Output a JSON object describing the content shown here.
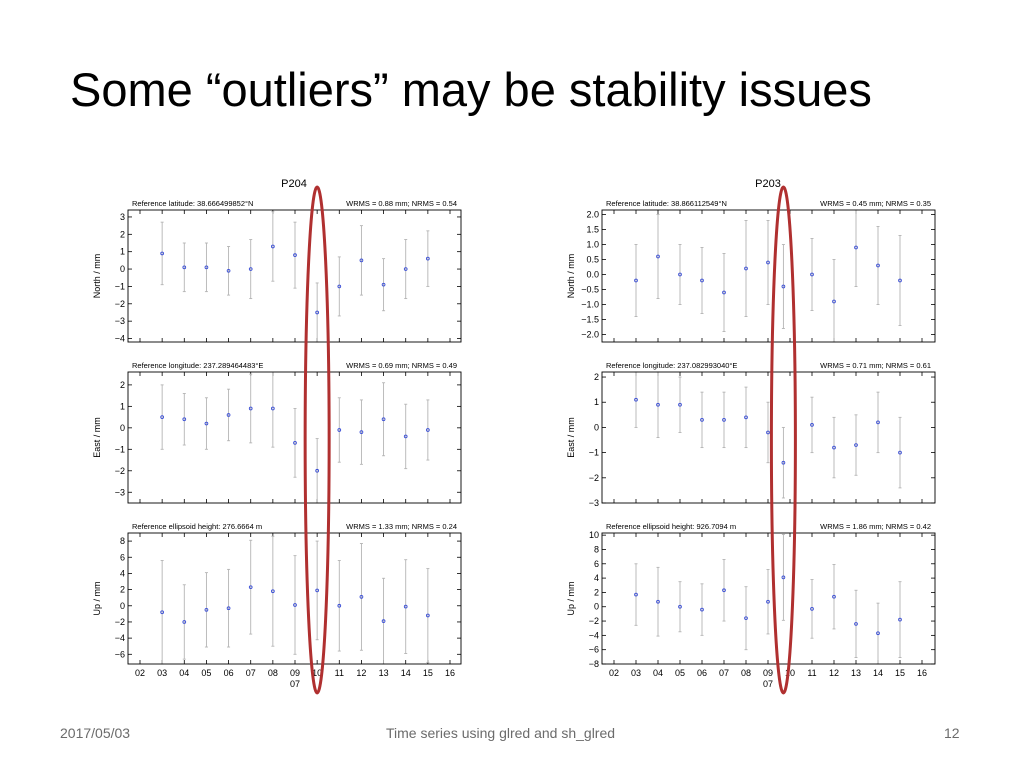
{
  "slide": {
    "title": "Some “outliers” may be stability issues",
    "footer_date": "2017/05/03",
    "footer_center": "Time series using glred and sh_glred",
    "page_number": "12"
  },
  "colors": {
    "point": "#3a4ed6",
    "errorbar": "#b4b4b4",
    "highlight_ellipse": "#b03030",
    "frame": "#000000"
  },
  "chart_data": [
    {
      "type": "scatter",
      "station": "P204",
      "x_ticks": [
        "02",
        "03",
        "04",
        "05",
        "06",
        "07",
        "08",
        "09",
        "10",
        "11",
        "12",
        "13",
        "14",
        "15",
        "16"
      ],
      "x_sublabel": {
        "tick": "09",
        "text": "07"
      },
      "highlight_x": 10.0,
      "panels": [
        {
          "component": "north",
          "ref_label": "Reference latitude: 38.666499852°N",
          "stats_label": "WRMS = 0.88 mm; NRMS = 0.54",
          "ylabel": "North / mm",
          "ylim": [
            -4.2,
            3.4
          ],
          "y_ticks": [
            {
              "v": 3,
              "t": "3"
            },
            {
              "v": 2,
              "t": "2"
            },
            {
              "v": 1,
              "t": "1"
            },
            {
              "v": 0,
              "t": "0"
            },
            {
              "v": -1,
              "t": "−1"
            },
            {
              "v": -2,
              "t": "−2"
            },
            {
              "v": -3,
              "t": "−3"
            },
            {
              "v": -4,
              "t": "−4"
            }
          ],
          "points": [
            {
              "x": 3,
              "y": 0.9,
              "lo": -0.9,
              "hi": 2.7
            },
            {
              "x": 4,
              "y": 0.1,
              "lo": -1.3,
              "hi": 1.5
            },
            {
              "x": 5,
              "y": 0.1,
              "lo": -1.3,
              "hi": 1.5
            },
            {
              "x": 6,
              "y": -0.1,
              "lo": -1.5,
              "hi": 1.3
            },
            {
              "x": 7,
              "y": 0.0,
              "lo": -1.7,
              "hi": 1.7
            },
            {
              "x": 8,
              "y": 1.3,
              "lo": -0.7,
              "hi": 3.3
            },
            {
              "x": 9,
              "y": 0.8,
              "lo": -1.1,
              "hi": 2.7
            },
            {
              "x": 10,
              "y": -2.5,
              "lo": -4.2,
              "hi": -0.8
            },
            {
              "x": 11,
              "y": -1.0,
              "lo": -2.7,
              "hi": 0.7
            },
            {
              "x": 12,
              "y": 0.5,
              "lo": -1.5,
              "hi": 2.5
            },
            {
              "x": 13,
              "y": -0.9,
              "lo": -2.4,
              "hi": 0.6
            },
            {
              "x": 14,
              "y": 0.0,
              "lo": -1.7,
              "hi": 1.7
            },
            {
              "x": 15,
              "y": 0.6,
              "lo": -1.0,
              "hi": 2.2
            }
          ]
        },
        {
          "component": "east",
          "ref_label": "Reference longitude: 237.289464483°E",
          "stats_label": "WRMS = 0.69 mm; NRMS = 0.49",
          "ylabel": "East / mm",
          "ylim": [
            -3.5,
            2.6
          ],
          "y_ticks": [
            {
              "v": 2,
              "t": "2"
            },
            {
              "v": 1,
              "t": "1"
            },
            {
              "v": 0,
              "t": "0"
            },
            {
              "v": -1,
              "t": "−1"
            },
            {
              "v": -2,
              "t": "−2"
            },
            {
              "v": -3,
              "t": "−3"
            }
          ],
          "points": [
            {
              "x": 3,
              "y": 0.5,
              "lo": -1.0,
              "hi": 2.0
            },
            {
              "x": 4,
              "y": 0.4,
              "lo": -0.8,
              "hi": 1.6
            },
            {
              "x": 5,
              "y": 0.2,
              "lo": -1.0,
              "hi": 1.4
            },
            {
              "x": 6,
              "y": 0.6,
              "lo": -0.6,
              "hi": 1.8
            },
            {
              "x": 7,
              "y": 0.9,
              "lo": -0.7,
              "hi": 2.5
            },
            {
              "x": 8,
              "y": 0.9,
              "lo": -0.9,
              "hi": 2.7
            },
            {
              "x": 9,
              "y": -0.7,
              "lo": -2.3,
              "hi": 0.9
            },
            {
              "x": 10,
              "y": -2.0,
              "lo": -3.5,
              "hi": -0.5
            },
            {
              "x": 11,
              "y": -0.1,
              "lo": -1.6,
              "hi": 1.4
            },
            {
              "x": 12,
              "y": -0.2,
              "lo": -1.7,
              "hi": 1.3
            },
            {
              "x": 13,
              "y": 0.4,
              "lo": -1.3,
              "hi": 2.1
            },
            {
              "x": 14,
              "y": -0.4,
              "lo": -1.9,
              "hi": 1.1
            },
            {
              "x": 15,
              "y": -0.1,
              "lo": -1.5,
              "hi": 1.3
            }
          ]
        },
        {
          "component": "up",
          "ref_label": "Reference ellipsoid height: 276.6664 m",
          "stats_label": "WRMS = 1.33 mm; NRMS = 0.24",
          "ylabel": "Up / mm",
          "ylim": [
            -7.2,
            9.0
          ],
          "y_ticks": [
            {
              "v": 8,
              "t": "8"
            },
            {
              "v": 6,
              "t": "6"
            },
            {
              "v": 4,
              "t": "4"
            },
            {
              "v": 2,
              "t": "2"
            },
            {
              "v": 0,
              "t": "0"
            },
            {
              "v": -2,
              "t": "−2"
            },
            {
              "v": -4,
              "t": "−4"
            },
            {
              "v": -6,
              "t": "−6"
            }
          ],
          "points": [
            {
              "x": 3,
              "y": -0.8,
              "lo": -7.2,
              "hi": 5.6
            },
            {
              "x": 4,
              "y": -2.0,
              "lo": -6.6,
              "hi": 2.6
            },
            {
              "x": 5,
              "y": -0.5,
              "lo": -5.1,
              "hi": 4.1
            },
            {
              "x": 6,
              "y": -0.3,
              "lo": -5.1,
              "hi": 4.5
            },
            {
              "x": 7,
              "y": 2.3,
              "lo": -3.5,
              "hi": 8.1
            },
            {
              "x": 8,
              "y": 1.8,
              "lo": -5.0,
              "hi": 8.6
            },
            {
              "x": 9,
              "y": 0.1,
              "lo": -6.0,
              "hi": 6.2
            },
            {
              "x": 10,
              "y": 1.9,
              "lo": -4.2,
              "hi": 8.0
            },
            {
              "x": 11,
              "y": 0.0,
              "lo": -5.6,
              "hi": 5.6
            },
            {
              "x": 12,
              "y": 1.1,
              "lo": -5.5,
              "hi": 7.7
            },
            {
              "x": 13,
              "y": -1.9,
              "lo": -7.2,
              "hi": 3.4
            },
            {
              "x": 14,
              "y": -0.1,
              "lo": -5.9,
              "hi": 5.7
            },
            {
              "x": 15,
              "y": -1.2,
              "lo": -7.0,
              "hi": 4.6
            }
          ]
        }
      ]
    },
    {
      "type": "scatter",
      "station": "P203",
      "x_ticks": [
        "02",
        "03",
        "04",
        "05",
        "06",
        "07",
        "08",
        "09",
        "10",
        "11",
        "12",
        "13",
        "14",
        "15",
        "16"
      ],
      "x_sublabel": {
        "tick": "09",
        "text": "07"
      },
      "highlight_x": 9.7,
      "panels": [
        {
          "component": "north",
          "ref_label": "Reference latitude: 38.866112549°N",
          "stats_label": "WRMS = 0.45 mm; NRMS = 0.35",
          "ylabel": "North / mm",
          "ylim": [
            -2.25,
            2.15
          ],
          "y_ticks": [
            {
              "v": 2.0,
              "t": "2.0"
            },
            {
              "v": 1.5,
              "t": "1.5"
            },
            {
              "v": 1.0,
              "t": "1.0"
            },
            {
              "v": 0.5,
              "t": "0.5"
            },
            {
              "v": 0.0,
              "t": "0.0"
            },
            {
              "v": -0.5,
              "t": "−0.5"
            },
            {
              "v": -1.0,
              "t": "−1.0"
            },
            {
              "v": -1.5,
              "t": "−1.5"
            },
            {
              "v": -2.0,
              "t": "−2.0"
            }
          ],
          "points": [
            {
              "x": 3,
              "y": -0.2,
              "lo": -1.4,
              "hi": 1.0
            },
            {
              "x": 4,
              "y": 0.6,
              "lo": -0.8,
              "hi": 2.0
            },
            {
              "x": 5,
              "y": 0.0,
              "lo": -1.0,
              "hi": 1.0
            },
            {
              "x": 6,
              "y": -0.2,
              "lo": -1.3,
              "hi": 0.9
            },
            {
              "x": 7,
              "y": -0.6,
              "lo": -1.9,
              "hi": 0.7
            },
            {
              "x": 8,
              "y": 0.2,
              "lo": -1.4,
              "hi": 1.8
            },
            {
              "x": 9,
              "y": 0.4,
              "lo": -1.0,
              "hi": 1.8
            },
            {
              "x": 9.7,
              "y": -0.4,
              "lo": -1.8,
              "hi": 1.0
            },
            {
              "x": 11,
              "y": 0.0,
              "lo": -1.2,
              "hi": 1.2
            },
            {
              "x": 12,
              "y": -0.9,
              "lo": -2.25,
              "hi": 0.5
            },
            {
              "x": 13,
              "y": 0.9,
              "lo": -0.4,
              "hi": 2.15
            },
            {
              "x": 14,
              "y": 0.3,
              "lo": -1.0,
              "hi": 1.6
            },
            {
              "x": 15,
              "y": -0.2,
              "lo": -1.7,
              "hi": 1.3
            }
          ]
        },
        {
          "component": "east",
          "ref_label": "Reference longitude: 237.082993040°E",
          "stats_label": "WRMS = 0.71 mm; NRMS = 0.61",
          "ylabel": "East / mm",
          "ylim": [
            -3.0,
            2.2
          ],
          "y_ticks": [
            {
              "v": 2,
              "t": "2"
            },
            {
              "v": 1,
              "t": "1"
            },
            {
              "v": 0,
              "t": "0"
            },
            {
              "v": -1,
              "t": "−1"
            },
            {
              "v": -2,
              "t": "−2"
            },
            {
              "v": -3,
              "t": "−3"
            }
          ],
          "points": [
            {
              "x": 3,
              "y": 1.1,
              "lo": 0.0,
              "hi": 2.2
            },
            {
              "x": 4,
              "y": 0.9,
              "lo": -0.4,
              "hi": 2.2
            },
            {
              "x": 5,
              "y": 0.9,
              "lo": -0.2,
              "hi": 2.0
            },
            {
              "x": 6,
              "y": 0.3,
              "lo": -0.8,
              "hi": 1.4
            },
            {
              "x": 7,
              "y": 0.3,
              "lo": -0.8,
              "hi": 1.4
            },
            {
              "x": 8,
              "y": 0.4,
              "lo": -0.8,
              "hi": 1.6
            },
            {
              "x": 9,
              "y": -0.2,
              "lo": -1.4,
              "hi": 1.0
            },
            {
              "x": 9.7,
              "y": -1.4,
              "lo": -2.8,
              "hi": 0.0
            },
            {
              "x": 11,
              "y": 0.1,
              "lo": -1.0,
              "hi": 1.2
            },
            {
              "x": 12,
              "y": -0.8,
              "lo": -2.0,
              "hi": 0.4
            },
            {
              "x": 13,
              "y": -0.7,
              "lo": -1.9,
              "hi": 0.5
            },
            {
              "x": 14,
              "y": 0.2,
              "lo": -1.0,
              "hi": 1.4
            },
            {
              "x": 15,
              "y": -1.0,
              "lo": -2.4,
              "hi": 0.4
            }
          ]
        },
        {
          "component": "up",
          "ref_label": "Reference ellipsoid height: 926.7094 m",
          "stats_label": "WRMS = 1.86 mm; NRMS = 0.42",
          "ylabel": "Up / mm",
          "ylim": [
            -8.0,
            10.3
          ],
          "y_ticks": [
            {
              "v": 10,
              "t": "10"
            },
            {
              "v": 8,
              "t": "8"
            },
            {
              "v": 6,
              "t": "6"
            },
            {
              "v": 4,
              "t": "4"
            },
            {
              "v": 2,
              "t": "2"
            },
            {
              "v": 0,
              "t": "0"
            },
            {
              "v": -2,
              "t": "−2"
            },
            {
              "v": -4,
              "t": "−4"
            },
            {
              "v": -6,
              "t": "−6"
            },
            {
              "v": -8,
              "t": "−8"
            }
          ],
          "points": [
            {
              "x": 3,
              "y": 1.7,
              "lo": -2.6,
              "hi": 6.0
            },
            {
              "x": 4,
              "y": 0.7,
              "lo": -4.1,
              "hi": 5.5
            },
            {
              "x": 5,
              "y": 0.0,
              "lo": -3.5,
              "hi": 3.5
            },
            {
              "x": 6,
              "y": -0.4,
              "lo": -4.0,
              "hi": 3.2
            },
            {
              "x": 7,
              "y": 2.3,
              "lo": -2.0,
              "hi": 6.6
            },
            {
              "x": 8,
              "y": -1.6,
              "lo": -6.0,
              "hi": 2.8
            },
            {
              "x": 9,
              "y": 0.7,
              "lo": -3.8,
              "hi": 5.2
            },
            {
              "x": 9.7,
              "y": 4.1,
              "lo": -1.9,
              "hi": 10.1
            },
            {
              "x": 11,
              "y": -0.3,
              "lo": -4.4,
              "hi": 3.8
            },
            {
              "x": 12,
              "y": 1.4,
              "lo": -3.1,
              "hi": 5.9
            },
            {
              "x": 13,
              "y": -2.4,
              "lo": -7.1,
              "hi": 2.3
            },
            {
              "x": 14,
              "y": -3.7,
              "lo": -8.0,
              "hi": 0.5
            },
            {
              "x": 15,
              "y": -1.8,
              "lo": -7.1,
              "hi": 3.5
            }
          ]
        }
      ]
    }
  ]
}
